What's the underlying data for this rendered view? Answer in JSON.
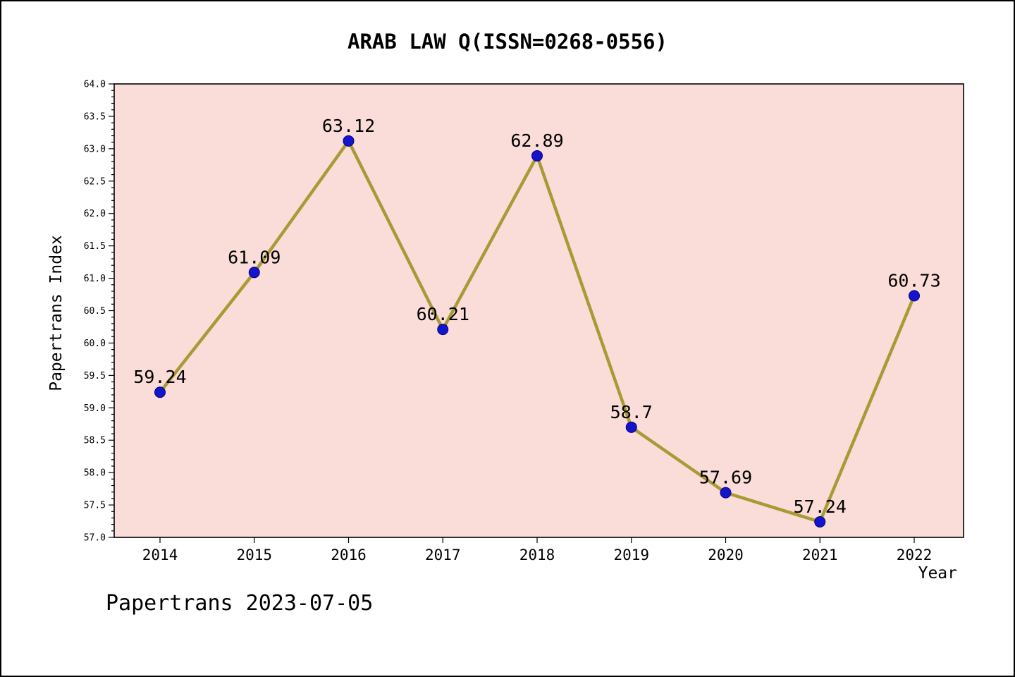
{
  "title": "ARAB LAW Q(ISSN=0268-0556)",
  "footer": "Papertrans 2023-07-05",
  "chart_data": {
    "type": "line",
    "x": [
      2014,
      2015,
      2016,
      2017,
      2018,
      2019,
      2020,
      2021,
      2022
    ],
    "series": [
      {
        "name": "Papertrans Index",
        "values": [
          59.24,
          61.09,
          63.12,
          60.21,
          62.89,
          58.7,
          57.69,
          57.24,
          60.73
        ]
      }
    ],
    "point_labels": [
      "59.24",
      "61.09",
      "63.12",
      "60.21",
      "62.89",
      "58.7",
      "57.69",
      "57.24",
      "60.73"
    ],
    "xlabel": "Year",
    "ylabel": "Papertrans Index",
    "ylim": [
      57.0,
      64.0
    ],
    "y_major_step": 0.5,
    "y_minor_step": 0.1,
    "grid": false,
    "legend": "none",
    "colors": {
      "line": "#a89a35",
      "marker": "#1414cd",
      "marker_edge": "#000080",
      "plot_bg": "#fadcd8",
      "axis": "#000000",
      "text": "#000000"
    }
  }
}
